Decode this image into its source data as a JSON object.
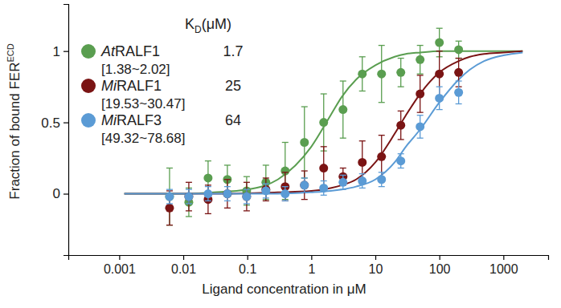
{
  "chart_data": {
    "type": "scatter",
    "xlabel": "Ligand concentration in μM",
    "ylabel": [
      "Fraction of bound FER",
      "ECD"
    ],
    "legend_title": [
      "K",
      "D",
      "(μM)"
    ],
    "log": "x",
    "legend": "upper left",
    "marker": "circle",
    "xlim": [
      0.00016,
      5000
    ],
    "ylim": [
      -0.43,
      1.33
    ],
    "xticks": [
      0.001,
      0.01,
      0.1,
      1,
      10,
      100,
      1000
    ],
    "yticks": [
      0,
      0.5,
      1
    ],
    "x": [
      0.0061,
      0.0122,
      0.0244,
      0.0488,
      0.0977,
      0.195,
      0.39,
      0.78,
      1.56,
      3.125,
      6.25,
      12.5,
      25,
      50,
      100,
      200
    ],
    "fit_x": [
      0.0012,
      0.01,
      0.03,
      0.1,
      0.3,
      1,
      2,
      3,
      5,
      10,
      20,
      30,
      50,
      100,
      200,
      300,
      500,
      1000,
      2000
    ],
    "series": [
      {
        "name": "AtRALF1",
        "kd": 1.7,
        "kd_ci": "[1.38~2.02]",
        "color": "#5a9e50",
        "values": [
          -0.02,
          -0.06,
          0.11,
          0.1,
          0.02,
          0.08,
          0.16,
          0.36,
          0.5,
          0.59,
          0.84,
          0.84,
          0.85,
          0.94,
          1.06,
          1.01
        ],
        "errors": [
          0.2,
          0.1,
          0.12,
          0.1,
          0.1,
          0.12,
          0.2,
          0.25,
          0.2,
          0.2,
          0.12,
          0.2,
          0.1,
          0.1,
          0.1,
          0.06
        ],
        "fit_values": [
          0,
          0,
          0.01,
          0.03,
          0.1,
          0.33,
          0.55,
          0.68,
          0.8,
          0.9,
          0.96,
          0.98,
          0.99,
          1,
          1,
          1,
          1,
          1,
          1
        ]
      },
      {
        "name": "MiRALF1",
        "kd": 25,
        "kd_ci": "[19.53~30.47]",
        "color": "#7a1414",
        "values": [
          -0.1,
          -0.02,
          -0.04,
          0.0,
          -0.02,
          0.03,
          0.05,
          0.06,
          0.18,
          0.12,
          0.22,
          0.26,
          0.48,
          0.7,
          0.84,
          0.85
        ],
        "errors": [
          0.12,
          0.1,
          0.1,
          0.1,
          0.1,
          0.08,
          0.1,
          0.1,
          0.15,
          0.06,
          0.15,
          0.15,
          0.1,
          0.13,
          0.16,
          0.1
        ],
        "fit_values": [
          0,
          0,
          0,
          0.003,
          0.01,
          0.02,
          0.04,
          0.06,
          0.1,
          0.22,
          0.42,
          0.55,
          0.7,
          0.85,
          0.93,
          0.96,
          0.98,
          0.99,
          1
        ]
      },
      {
        "name": "MiRALF3",
        "kd": 64,
        "kd_ci": "[49.32~78.68]",
        "color": "#5b9bd5",
        "values": [
          -0.02,
          -0.02,
          0.0,
          0.0,
          -0.02,
          0.02,
          0.0,
          0.06,
          0.04,
          0.08,
          0.09,
          0.1,
          0.23,
          0.47,
          0.67,
          0.71
        ],
        "errors": [
          0.05,
          0.05,
          0.05,
          0.05,
          0.05,
          0.05,
          0.05,
          0.05,
          0.05,
          0.05,
          0.05,
          0.05,
          0.05,
          0.08,
          0.08,
          0.08
        ],
        "fit_values": [
          0,
          0,
          0,
          0,
          0,
          0.01,
          0.02,
          0.03,
          0.05,
          0.1,
          0.22,
          0.33,
          0.45,
          0.64,
          0.8,
          0.87,
          0.93,
          0.97,
          0.99
        ]
      }
    ]
  }
}
